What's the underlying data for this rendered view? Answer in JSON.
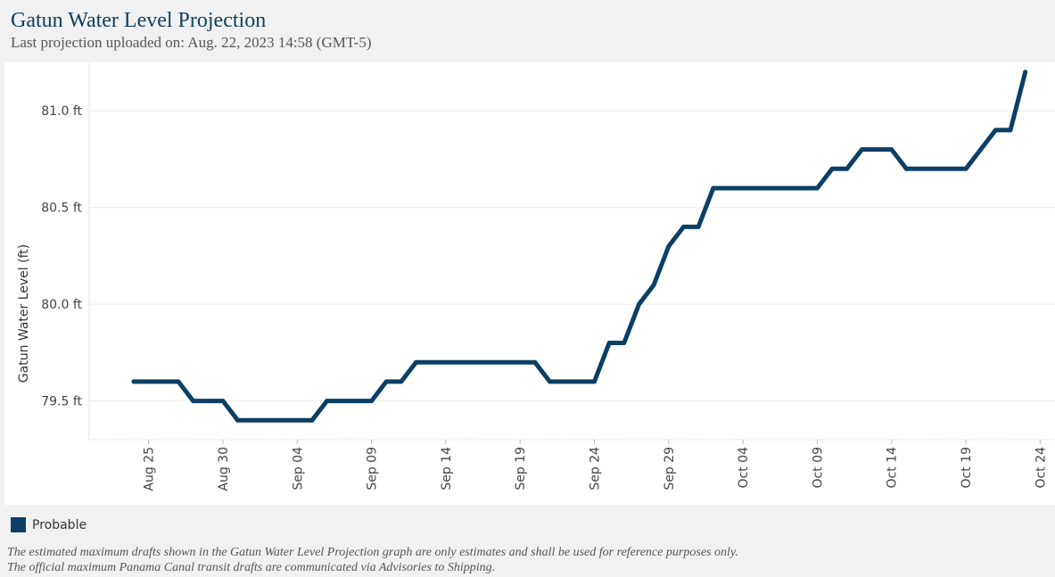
{
  "header": {
    "title": "Gatun Water Level Projection",
    "subtitle": "Last projection uploaded on: Aug. 22, 2023 14:58 (GMT-5)"
  },
  "legend": {
    "label": "Probable",
    "color": "#0b3f66"
  },
  "disclaimer": {
    "line1": "The estimated maximum drafts shown in the Gatun Water Level Projection graph are only estimates and shall be used for reference purposes only.",
    "line2": "The official maximum Panama Canal transit drafts are communicated via Advisories to Shipping."
  },
  "chart_data": {
    "type": "line",
    "ylabel": "Gatun Water Level (ft)",
    "xlabel": "",
    "ylim": [
      79.3,
      81.25
    ],
    "xlim": [
      "2023-08-21",
      "2023-10-25"
    ],
    "y_ticks": [
      79.5,
      80.0,
      80.5,
      81.0
    ],
    "y_tick_labels": [
      "79.5 ft",
      "80.0 ft",
      "80.5 ft",
      "81.0 ft"
    ],
    "x_ticks": [
      "2023-08-25",
      "2023-08-30",
      "2023-09-04",
      "2023-09-09",
      "2023-09-14",
      "2023-09-19",
      "2023-09-24",
      "2023-09-29",
      "2023-10-04",
      "2023-10-09",
      "2023-10-14",
      "2023-10-19",
      "2023-10-24"
    ],
    "x_tick_labels": [
      "Aug 25",
      "Aug 30",
      "Sep 04",
      "Sep 09",
      "Sep 14",
      "Sep 19",
      "Sep 24",
      "Sep 29",
      "Oct 04",
      "Oct 09",
      "Oct 14",
      "Oct 19",
      "Oct 24"
    ],
    "grid": true,
    "series": [
      {
        "name": "Probable",
        "color": "#0b3f66",
        "x": [
          "2023-08-24",
          "2023-08-27",
          "2023-08-28",
          "2023-08-30",
          "2023-08-31",
          "2023-09-05",
          "2023-09-06",
          "2023-09-09",
          "2023-09-10",
          "2023-09-11",
          "2023-09-12",
          "2023-09-20",
          "2023-09-21",
          "2023-09-24",
          "2023-09-25",
          "2023-09-26",
          "2023-09-27",
          "2023-09-28",
          "2023-09-29",
          "2023-09-30",
          "2023-10-01",
          "2023-10-02",
          "2023-10-09",
          "2023-10-10",
          "2023-10-11",
          "2023-10-12",
          "2023-10-13",
          "2023-10-14",
          "2023-10-15",
          "2023-10-19",
          "2023-10-21",
          "2023-10-22",
          "2023-10-23"
        ],
        "y": [
          79.6,
          79.6,
          79.5,
          79.5,
          79.4,
          79.4,
          79.5,
          79.5,
          79.6,
          79.6,
          79.7,
          79.7,
          79.6,
          79.6,
          79.8,
          79.8,
          80.0,
          80.1,
          80.3,
          80.4,
          80.4,
          80.6,
          80.6,
          80.7,
          80.7,
          80.8,
          80.8,
          80.8,
          80.7,
          80.7,
          80.9,
          80.9,
          81.2
        ]
      }
    ]
  }
}
